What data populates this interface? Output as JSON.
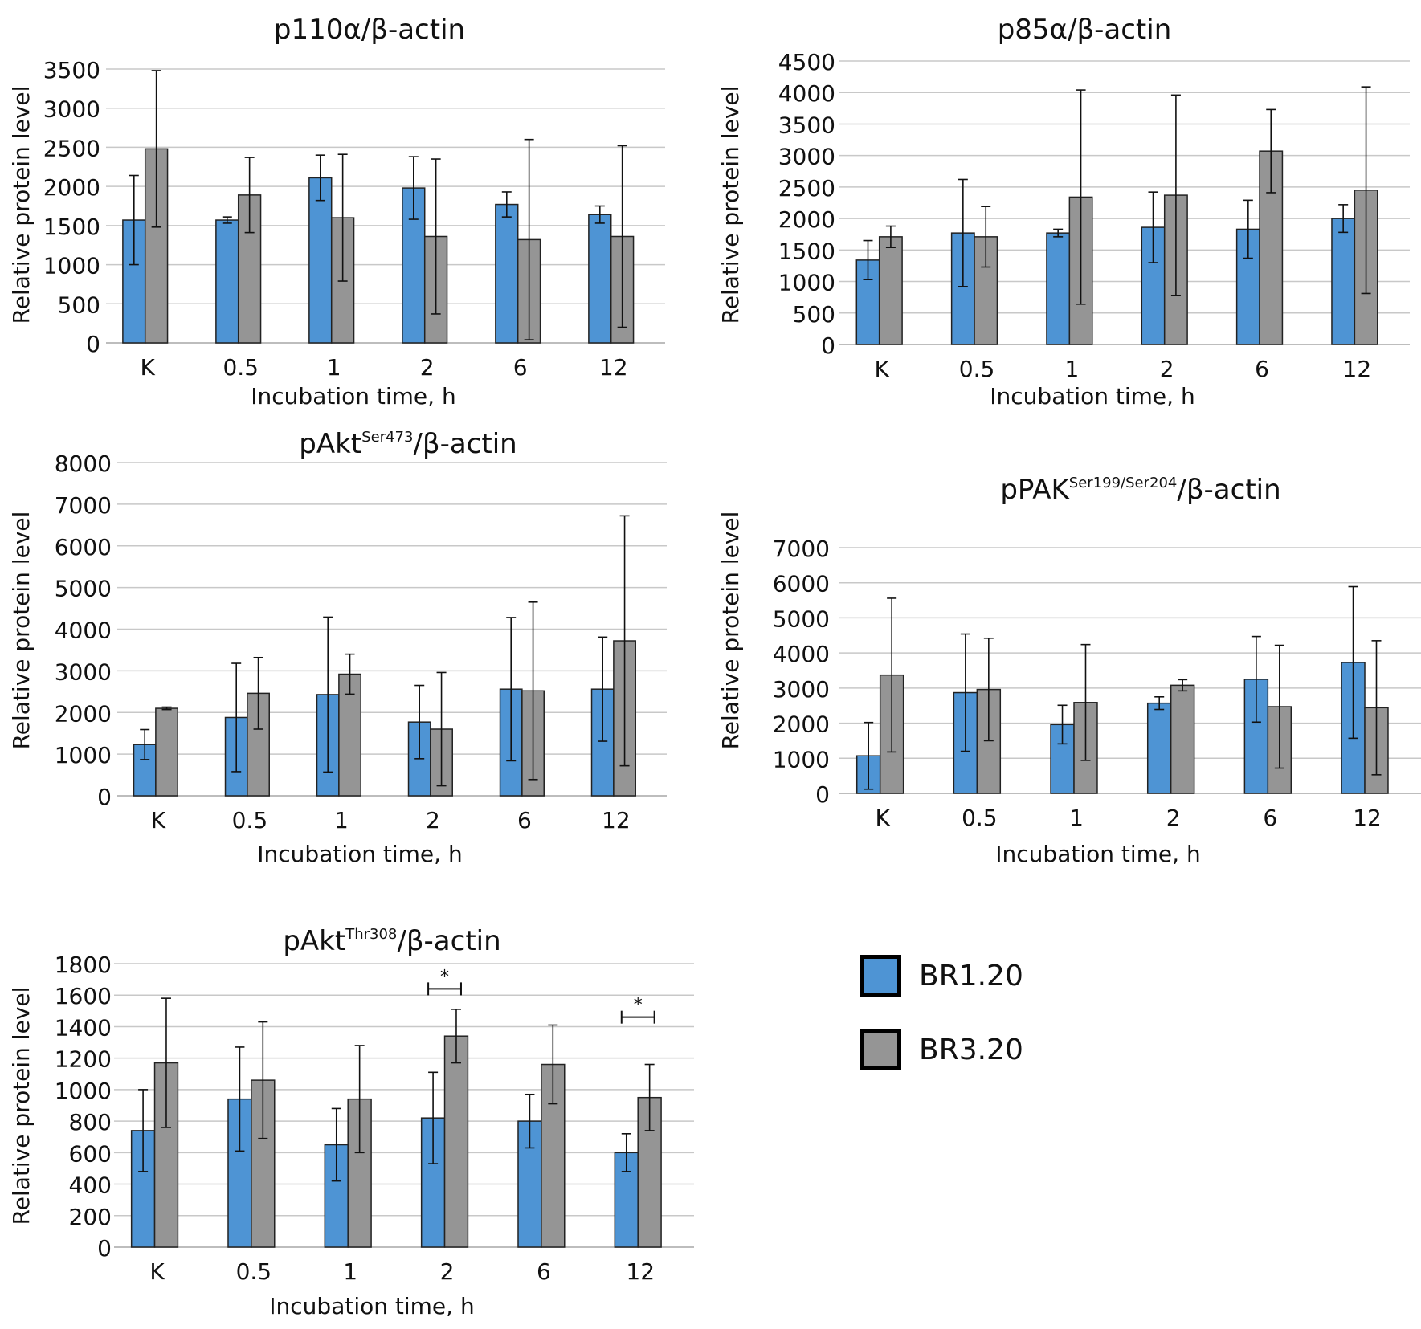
{
  "legend": {
    "items": [
      {
        "label": "BR1.20",
        "color": "#4e94d4"
      },
      {
        "label": "BR3.20",
        "color": "#959595"
      }
    ]
  },
  "chart_data": [
    {
      "type": "bar",
      "title": {
        "main": "p110α",
        "sup": "",
        "suffix": "/β-actin"
      },
      "ylabel": "Relative protein level",
      "xlabel": "Incubation time, h",
      "categories": [
        "K",
        "0.5",
        "1",
        "2",
        "6",
        "12"
      ],
      "ylim": [
        0,
        3500
      ],
      "yticks": [
        0,
        500,
        1000,
        1500,
        2000,
        2500,
        3000,
        3500
      ],
      "grid": true,
      "series": [
        {
          "name": "BR1.20",
          "color": "#4e94d4",
          "values": [
            1570,
            1570,
            2110,
            1980,
            1770,
            1640
          ],
          "err": [
            570,
            40,
            290,
            400,
            160,
            110
          ]
        },
        {
          "name": "BR3.20",
          "color": "#959595",
          "values": [
            2480,
            1890,
            1600,
            1360,
            1320,
            1360
          ],
          "err": [
            1000,
            480,
            810,
            990,
            1280,
            1160
          ]
        }
      ]
    },
    {
      "type": "bar",
      "title": {
        "main": "p85α",
        "sup": "",
        "suffix": "/β-actin"
      },
      "ylabel": "Relative protein level",
      "xlabel": "Incubation time, h",
      "categories": [
        "K",
        "0.5",
        "1",
        "2",
        "6",
        "12"
      ],
      "ylim": [
        0,
        4500
      ],
      "yticks": [
        0,
        500,
        1000,
        1500,
        2000,
        2500,
        3000,
        3500,
        4000,
        4500
      ],
      "grid": true,
      "series": [
        {
          "name": "BR1.20",
          "color": "#4e94d4",
          "values": [
            1340,
            1770,
            1770,
            1860,
            1830,
            2000
          ],
          "err": [
            310,
            850,
            60,
            560,
            460,
            220
          ]
        },
        {
          "name": "BR3.20",
          "color": "#959595",
          "values": [
            1710,
            1710,
            2340,
            2370,
            3070,
            2450
          ],
          "err": [
            170,
            480,
            1700,
            1590,
            660,
            1640
          ]
        }
      ]
    },
    {
      "type": "bar",
      "title": {
        "main": "pAkt",
        "sup": "Ser473",
        "suffix": "/β-actin"
      },
      "ylabel": "Relative protein level",
      "xlabel": "Incubation time, h",
      "categories": [
        "K",
        "0.5",
        "1",
        "2",
        "6",
        "12"
      ],
      "ylim": [
        0,
        8000
      ],
      "yticks": [
        0,
        1000,
        2000,
        3000,
        4000,
        5000,
        6000,
        7000,
        8000
      ],
      "grid": true,
      "series": [
        {
          "name": "BR1.20",
          "color": "#4e94d4",
          "values": [
            1230,
            1880,
            2430,
            1770,
            2560,
            2560
          ],
          "err": [
            360,
            1300,
            1860,
            880,
            1720,
            1250
          ]
        },
        {
          "name": "BR3.20",
          "color": "#959595",
          "values": [
            2100,
            2460,
            2920,
            1600,
            2520,
            3720
          ],
          "err": [
            30,
            860,
            480,
            1360,
            2130,
            3000
          ]
        }
      ]
    },
    {
      "type": "bar",
      "title": {
        "main": "pPAK",
        "sup": "Ser199/Ser204",
        "suffix": "/β-actin"
      },
      "ylabel": "Relative protein level",
      "xlabel": "Incubation time, h",
      "categories": [
        "K",
        "0.5",
        "1",
        "2",
        "6",
        "12"
      ],
      "ylim": [
        0,
        7000
      ],
      "yticks": [
        0,
        1000,
        2000,
        3000,
        4000,
        5000,
        6000,
        7000
      ],
      "grid": true,
      "series": [
        {
          "name": "BR1.20",
          "color": "#4e94d4",
          "values": [
            1070,
            2870,
            1960,
            2570,
            3250,
            3730
          ],
          "err": [
            950,
            1670,
            550,
            180,
            1220,
            2160
          ]
        },
        {
          "name": "BR3.20",
          "color": "#959595",
          "values": [
            3370,
            2960,
            2590,
            3080,
            2470,
            2440
          ],
          "err": [
            2190,
            1460,
            1650,
            160,
            1750,
            1910
          ]
        }
      ]
    },
    {
      "type": "bar",
      "title": {
        "main": "pAkt",
        "sup": "Thr308",
        "suffix": "/β-actin"
      },
      "ylabel": "Relative protein level",
      "xlabel": "Incubation time, h",
      "categories": [
        "K",
        "0.5",
        "1",
        "2",
        "6",
        "12"
      ],
      "ylim": [
        0,
        1800
      ],
      "yticks": [
        0,
        200,
        400,
        600,
        800,
        1000,
        1200,
        1400,
        1600,
        1800
      ],
      "grid": true,
      "series": [
        {
          "name": "BR1.20",
          "color": "#4e94d4",
          "values": [
            740,
            940,
            650,
            820,
            800,
            600
          ],
          "err": [
            260,
            330,
            230,
            290,
            170,
            120
          ]
        },
        {
          "name": "BR3.20",
          "color": "#959595",
          "values": [
            1170,
            1060,
            940,
            1340,
            1160,
            950
          ],
          "err": [
            410,
            370,
            340,
            170,
            250,
            210
          ]
        }
      ],
      "annotations": [
        {
          "category": "2",
          "text": "*",
          "value": 1640
        },
        {
          "category": "12",
          "text": "*",
          "value": 1460
        }
      ]
    }
  ]
}
